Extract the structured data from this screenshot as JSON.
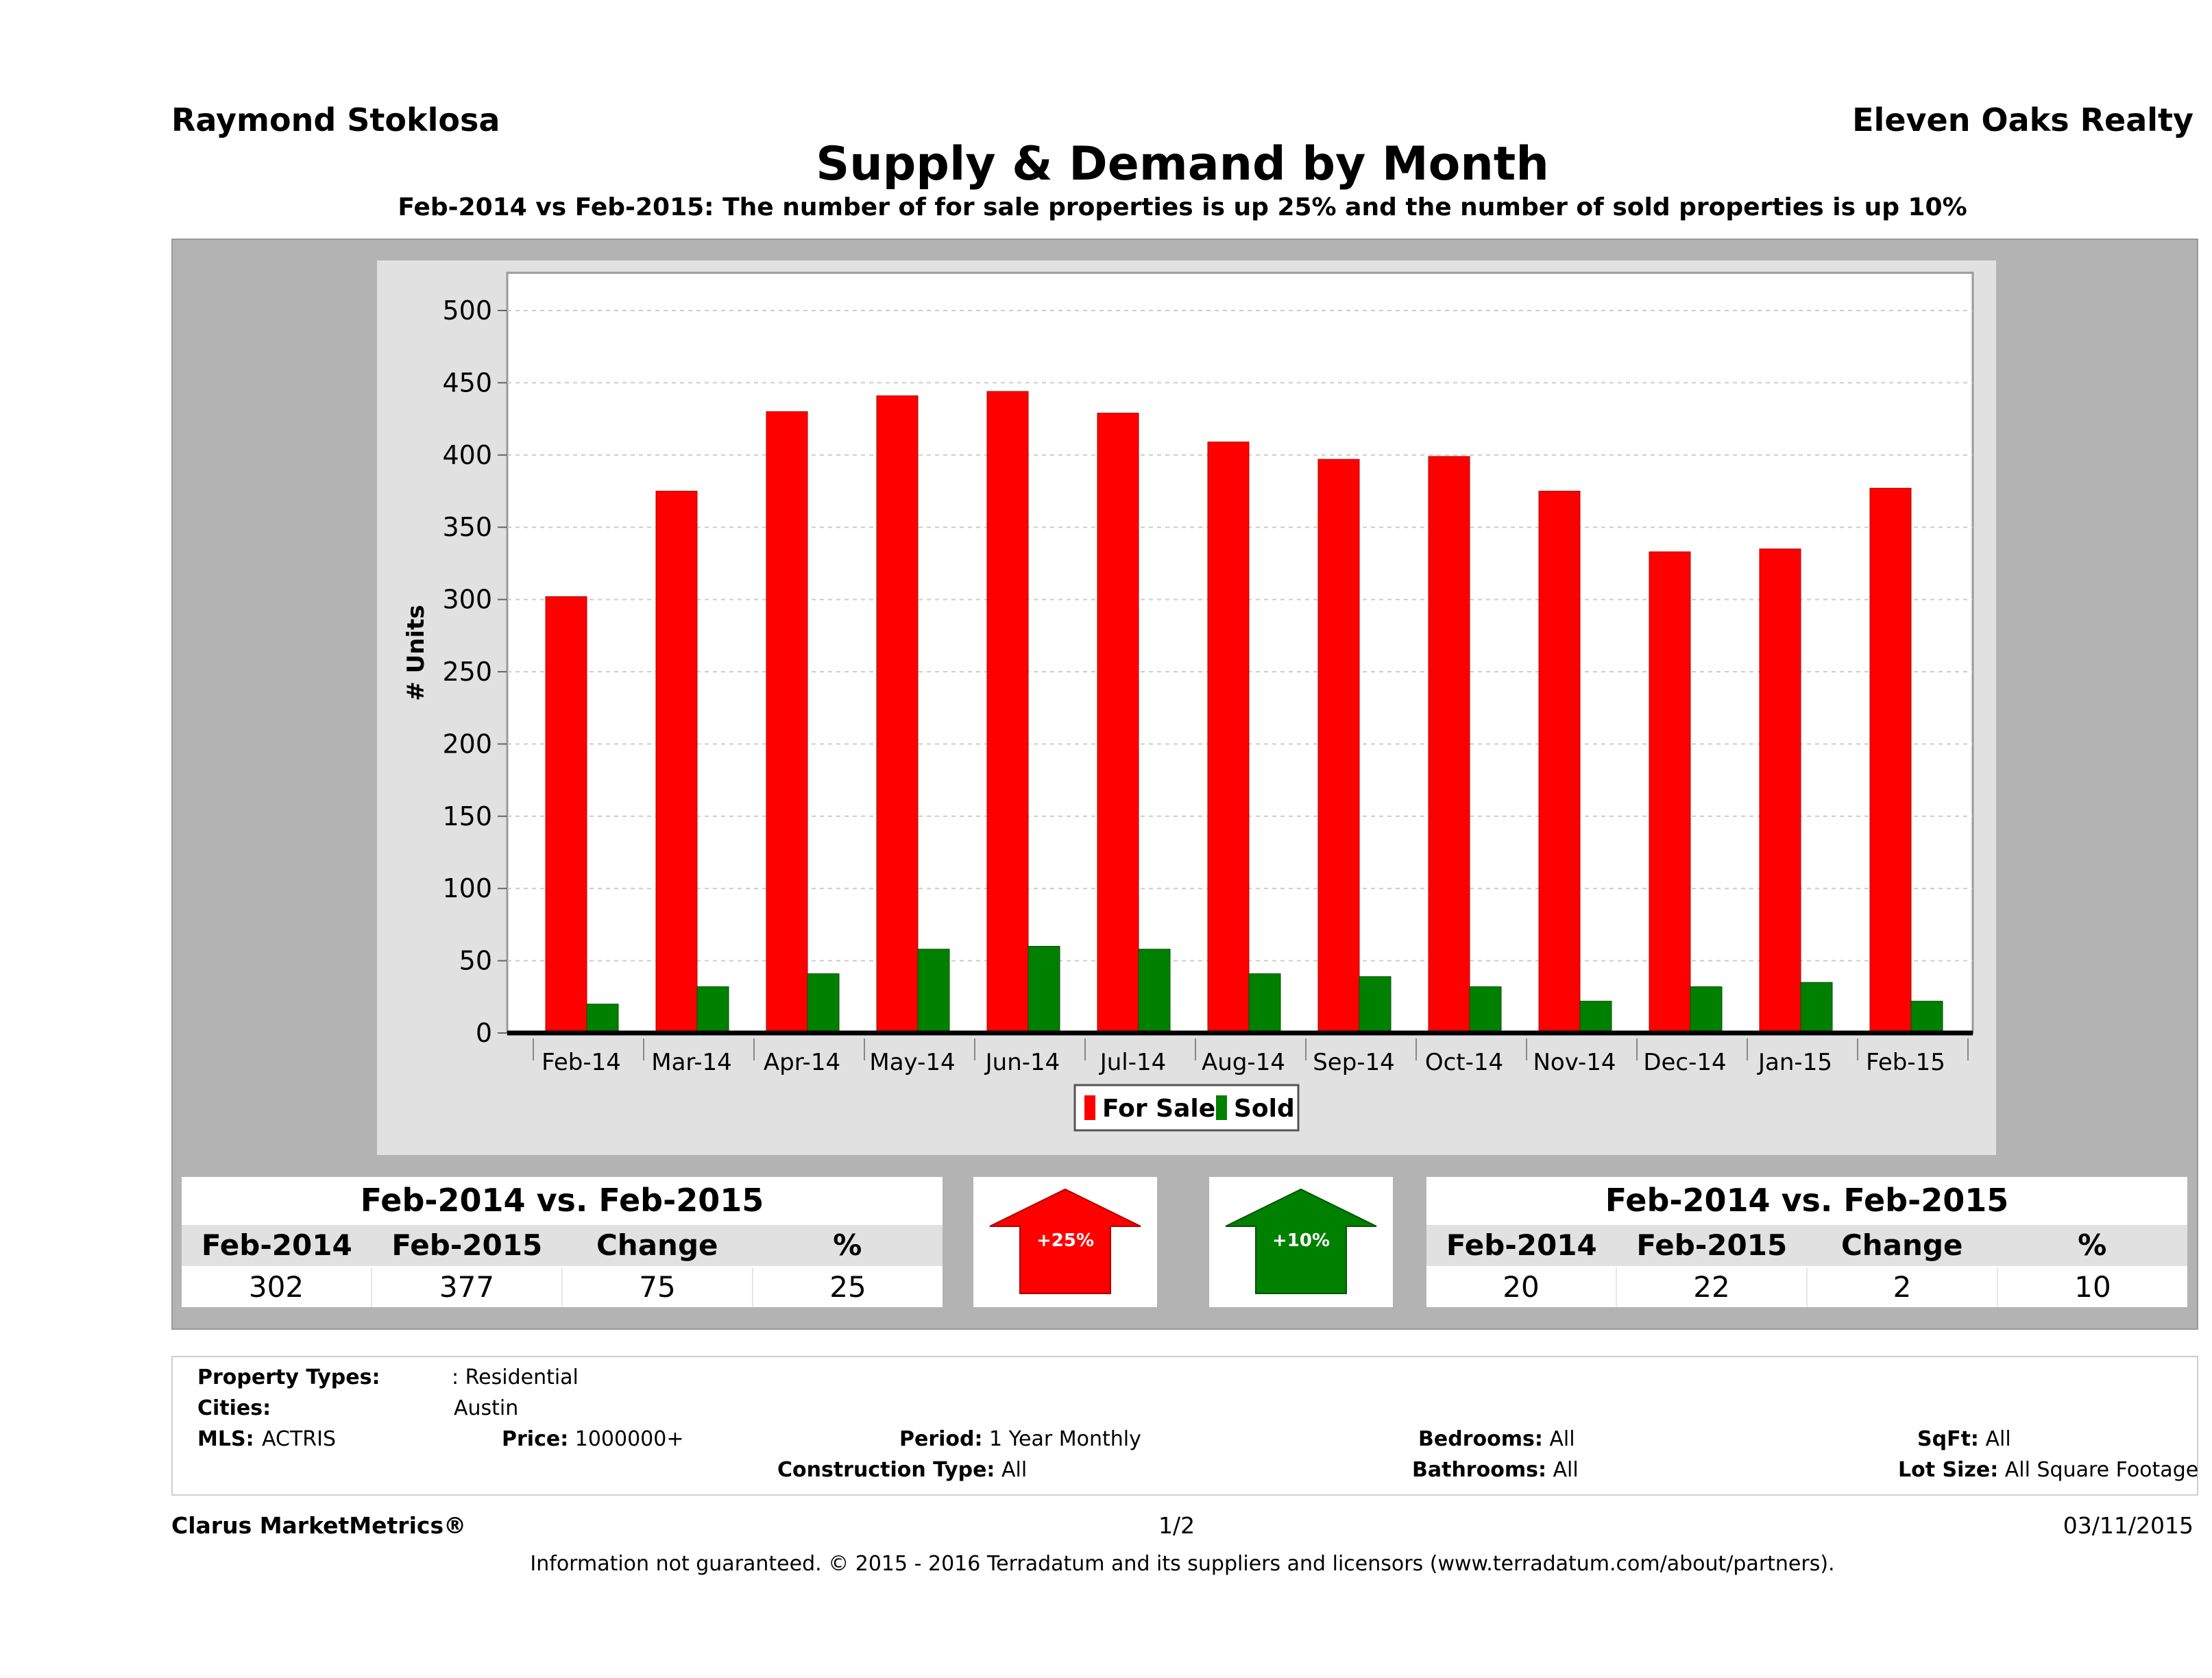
{
  "header": {
    "agent": "Raymond Stoklosa",
    "company": "Eleven Oaks Realty"
  },
  "title": "Supply & Demand by Month",
  "subtitle": "Feb-2014 vs Feb-2015: The number of for sale properties is up 25% and the number of sold properties is up 10%",
  "chart_data": {
    "type": "bar",
    "categories": [
      "Feb-14",
      "Mar-14",
      "Apr-14",
      "May-14",
      "Jun-14",
      "Jul-14",
      "Aug-14",
      "Sep-14",
      "Oct-14",
      "Nov-14",
      "Dec-14",
      "Jan-15",
      "Feb-15"
    ],
    "series": [
      {
        "name": "For Sale",
        "color": "#ff0000",
        "values": [
          302,
          375,
          430,
          441,
          444,
          429,
          409,
          397,
          399,
          375,
          333,
          335,
          377
        ]
      },
      {
        "name": "Sold",
        "color": "#008000",
        "values": [
          20,
          32,
          41,
          58,
          60,
          58,
          41,
          39,
          32,
          22,
          32,
          35,
          22
        ]
      }
    ],
    "ylabel": "# Units",
    "xlabel": "",
    "ylim": [
      0,
      500
    ],
    "yticks": [
      0,
      50,
      100,
      150,
      200,
      250,
      300,
      350,
      400,
      450,
      500
    ],
    "grid": true,
    "legend": "bottom-center"
  },
  "for_sale_summary": {
    "title": "Feb-2014 vs. Feb-2015",
    "headers": [
      "Feb-2014",
      "Feb-2015",
      "Change",
      "%"
    ],
    "values": [
      "302",
      "377",
      "75",
      "25"
    ],
    "arrow_label": "+25%",
    "arrow_color": "#ff0000"
  },
  "sold_summary": {
    "title": "Feb-2014 vs. Feb-2015",
    "headers": [
      "Feb-2014",
      "Feb-2015",
      "Change",
      "%"
    ],
    "values": [
      "20",
      "22",
      "2",
      "10"
    ],
    "arrow_label": "+10%",
    "arrow_color": "#008000"
  },
  "criteria": {
    "property_types_label": "Property Types:",
    "property_types_value": ": Residential",
    "cities_label": "Cities:",
    "cities_value": "Austin",
    "mls_label": "MLS:",
    "mls_value": "ACTRIS",
    "price_label": "Price:",
    "price_value": "1000000+",
    "period_label": "Period:",
    "period_value": "1 Year Monthly",
    "construction_label": "Construction Type:",
    "construction_value": "All",
    "bedrooms_label": "Bedrooms:",
    "bedrooms_value": "All",
    "bathrooms_label": "Bathrooms:",
    "bathrooms_value": "All",
    "sqft_label": "SqFt:",
    "sqft_value": "All",
    "lot_label": "Lot Size:",
    "lot_value": "All Square Footage"
  },
  "footer": {
    "brand": "Clarus MarketMetrics®",
    "page": "1/2",
    "date": "03/11/2015",
    "disclaimer": "Information not guaranteed. © 2015 - 2016 Terradatum and its suppliers and licensors (www.terradatum.com/about/partners)."
  }
}
